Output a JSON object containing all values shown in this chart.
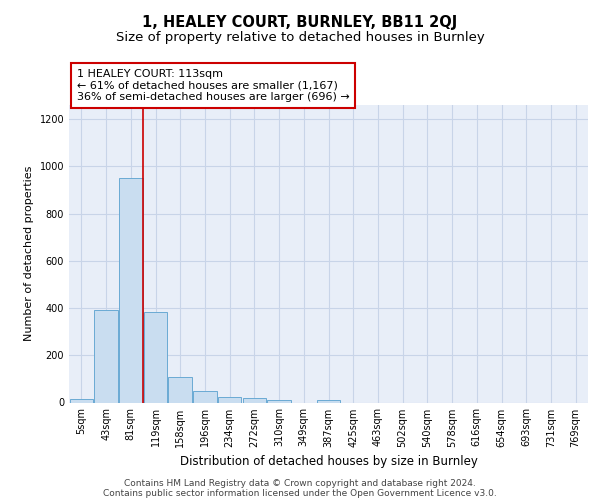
{
  "title": "1, HEALEY COURT, BURNLEY, BB11 2QJ",
  "subtitle": "Size of property relative to detached houses in Burnley",
  "xlabel": "Distribution of detached houses by size in Burnley",
  "ylabel": "Number of detached properties",
  "categories": [
    "5sqm",
    "43sqm",
    "81sqm",
    "119sqm",
    "158sqm",
    "196sqm",
    "234sqm",
    "272sqm",
    "310sqm",
    "349sqm",
    "387sqm",
    "425sqm",
    "463sqm",
    "502sqm",
    "540sqm",
    "578sqm",
    "616sqm",
    "654sqm",
    "693sqm",
    "731sqm",
    "769sqm"
  ],
  "bar_values": [
    13,
    390,
    950,
    385,
    110,
    50,
    22,
    17,
    12,
    0,
    12,
    0,
    0,
    0,
    0,
    0,
    0,
    0,
    0,
    0,
    0
  ],
  "bar_color": "#c9ddf0",
  "bar_edge_color": "#6aaad4",
  "vline_x": 2.5,
  "vline_color": "#cc0000",
  "annotation_text": "1 HEALEY COURT: 113sqm\n← 61% of detached houses are smaller (1,167)\n36% of semi-detached houses are larger (696) →",
  "annotation_box_color": "white",
  "annotation_box_edge": "#cc0000",
  "ylim": [
    0,
    1260
  ],
  "yticks": [
    0,
    200,
    400,
    600,
    800,
    1000,
    1200
  ],
  "grid_color": "#c8d4e8",
  "bg_color": "#e8eef8",
  "footer_line1": "Contains HM Land Registry data © Crown copyright and database right 2024.",
  "footer_line2": "Contains public sector information licensed under the Open Government Licence v3.0.",
  "title_fontsize": 10.5,
  "subtitle_fontsize": 9.5,
  "axis_label_fontsize": 8.5,
  "ylabel_fontsize": 8,
  "tick_fontsize": 7,
  "annotation_fontsize": 8,
  "footer_fontsize": 6.5
}
